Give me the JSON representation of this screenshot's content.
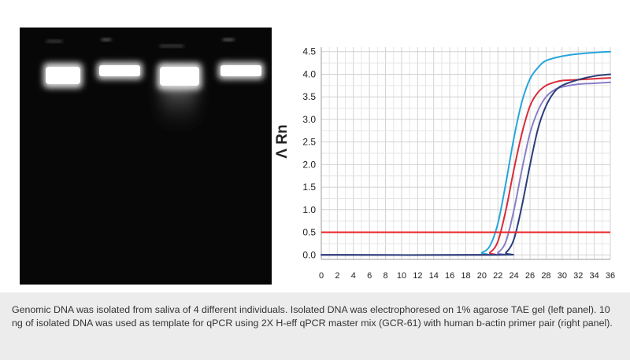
{
  "gel": {
    "lane_count": 4,
    "background_color": "#070707",
    "band_color": "#ffffff"
  },
  "chart_data": {
    "type": "line",
    "ylabel": "Λ Rn",
    "xlabel": "",
    "title": "",
    "x_ticks": [
      0,
      2,
      4,
      6,
      8,
      10,
      12,
      14,
      16,
      18,
      20,
      22,
      24,
      26,
      28,
      30,
      32,
      34,
      36
    ],
    "y_ticks": [
      "0.0",
      "0.5",
      "1.0",
      "1.5",
      "2.0",
      "2.5",
      "3.0",
      "3.5",
      "4.0",
      "4.5"
    ],
    "xlim": [
      0,
      36
    ],
    "ylim": [
      -0.1,
      4.6
    ],
    "grid": true,
    "threshold": {
      "value": 0.5,
      "color": "#e8262a"
    },
    "series": [
      {
        "color": "#26a6dc",
        "x": [
          0,
          19,
          20,
          21,
          22,
          23,
          24,
          25,
          26,
          27,
          28,
          30,
          32,
          34,
          36
        ],
        "y": [
          0,
          0,
          0.05,
          0.2,
          0.7,
          1.6,
          2.6,
          3.4,
          3.9,
          4.15,
          4.3,
          4.4,
          4.45,
          4.48,
          4.5
        ]
      },
      {
        "color": "#d92c3a",
        "x": [
          0,
          20,
          21,
          22,
          23,
          24,
          25,
          26,
          27,
          28,
          29,
          30,
          32,
          34,
          36
        ],
        "y": [
          0,
          0,
          0.05,
          0.3,
          1.0,
          1.9,
          2.7,
          3.3,
          3.6,
          3.75,
          3.82,
          3.86,
          3.88,
          3.9,
          3.92
        ]
      },
      {
        "color": "#8a7fc8",
        "x": [
          0,
          21,
          22,
          23,
          24,
          25,
          26,
          27,
          28,
          29,
          30,
          32,
          34,
          36
        ],
        "y": [
          0,
          0,
          0.05,
          0.3,
          1.0,
          1.9,
          2.7,
          3.2,
          3.5,
          3.65,
          3.72,
          3.78,
          3.8,
          3.82
        ]
      },
      {
        "color": "#2a3d7a",
        "x": [
          0,
          22,
          23,
          24,
          25,
          26,
          27,
          28,
          29,
          30,
          32,
          34,
          36
        ],
        "y": [
          0,
          0,
          0.05,
          0.35,
          1.1,
          2.0,
          2.8,
          3.3,
          3.6,
          3.75,
          3.88,
          3.96,
          4.0
        ]
      }
    ]
  },
  "caption": {
    "text": "Genomic DNA was isolated from saliva of 4 different individuals. Isolated DNA was electrophoresed on 1% agarose TAE gel (left panel). 10 ng of isolated DNA was used as template for qPCR using 2X H-eff qPCR master mix (GCR-61) with human b-actin primer pair (right panel)."
  }
}
